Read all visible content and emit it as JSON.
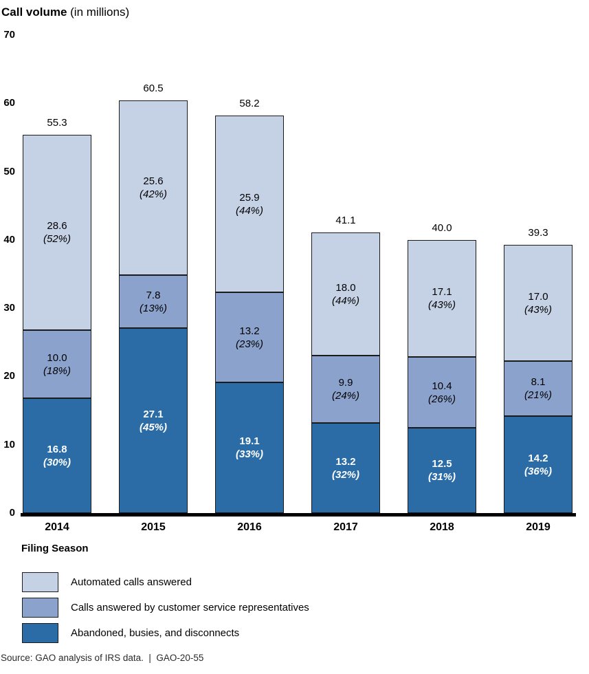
{
  "header": {
    "title": "Call volume",
    "subtitle": " (in millions)"
  },
  "chart_data": {
    "type": "bar",
    "stacked": true,
    "title": "Call volume (in millions)",
    "xlabel": "Filing Season",
    "ylabel": "Call volume (in millions)",
    "ylim": [
      0,
      70
    ],
    "y_ticks": [
      0,
      10,
      20,
      30,
      40,
      50,
      60,
      70
    ],
    "grid": false,
    "legend_position": "bottom-left",
    "categories": [
      "2014",
      "2015",
      "2016",
      "2017",
      "2018",
      "2019"
    ],
    "totals": [
      "55.3",
      "60.5",
      "58.2",
      "41.1",
      "40.0",
      "39.3"
    ],
    "series": [
      {
        "key": "abandoned",
        "name": "Abandoned, busies, and disconnects",
        "color": "#2b6ca6",
        "text_color": "#ffffff",
        "bold_labels": true,
        "values": [
          16.8,
          27.1,
          19.1,
          13.2,
          12.5,
          14.2
        ],
        "labels": [
          "16.8",
          "27.1",
          "19.1",
          "13.2",
          "12.5",
          "14.2"
        ],
        "pct_labels": [
          "(30%)",
          "(45%)",
          "(33%)",
          "(32%)",
          "(31%)",
          "(36%)"
        ]
      },
      {
        "key": "csr",
        "name": "Calls answered by customer service representatives",
        "color": "#8aa2cc",
        "text_color": "#000000",
        "bold_labels": false,
        "values": [
          10.0,
          7.8,
          13.2,
          9.9,
          10.4,
          8.1
        ],
        "labels": [
          "10.0",
          "7.8",
          "13.2",
          "9.9",
          "10.4",
          "8.1"
        ],
        "pct_labels": [
          "(18%)",
          "(13%)",
          "(23%)",
          "(24%)",
          "(26%)",
          "(21%)"
        ]
      },
      {
        "key": "automated",
        "name": "Automated calls answered",
        "color": "#c5d2e6",
        "text_color": "#000000",
        "bold_labels": false,
        "values": [
          28.6,
          25.6,
          25.9,
          18.0,
          17.1,
          17.0
        ],
        "labels": [
          "28.6",
          "25.6",
          "25.9",
          "18.0",
          "17.1",
          "17.0"
        ],
        "pct_labels": [
          "(52%)",
          "(42%)",
          "(44%)",
          "(44%)",
          "(43%)",
          "(43%)"
        ]
      }
    ]
  },
  "legend": {
    "items": [
      {
        "label": "Automated calls answered",
        "series_key": "automated"
      },
      {
        "label": "Calls answered by customer service representatives",
        "series_key": "csr"
      },
      {
        "label": "Abandoned, busies, and disconnects",
        "series_key": "abandoned"
      }
    ]
  },
  "footer": {
    "source": "Source: GAO analysis of IRS data.  |  GAO-20-55"
  }
}
